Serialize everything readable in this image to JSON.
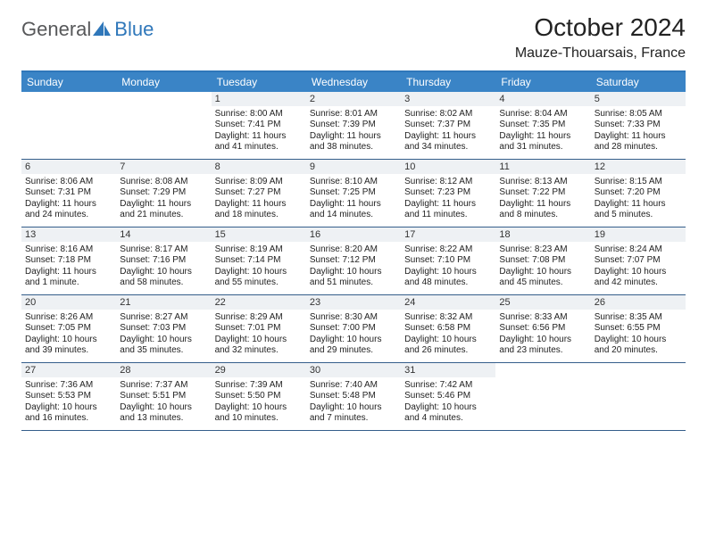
{
  "logo": {
    "general": "General",
    "blue": "Blue"
  },
  "header": {
    "title": "October 2024",
    "location": "Mauze-Thouarsais, France"
  },
  "colors": {
    "accent": "#3a84c6",
    "rule": "#355e8b",
    "daynum_bg": "#eef1f4"
  },
  "dow": [
    "Sunday",
    "Monday",
    "Tuesday",
    "Wednesday",
    "Thursday",
    "Friday",
    "Saturday"
  ],
  "layout": {
    "first_day_column": 2,
    "weeks": 5,
    "cols": 7
  },
  "days": [
    {
      "n": "1",
      "sr": "8:00 AM",
      "ss": "7:41 PM",
      "dl": "11 hours and 41 minutes."
    },
    {
      "n": "2",
      "sr": "8:01 AM",
      "ss": "7:39 PM",
      "dl": "11 hours and 38 minutes."
    },
    {
      "n": "3",
      "sr": "8:02 AM",
      "ss": "7:37 PM",
      "dl": "11 hours and 34 minutes."
    },
    {
      "n": "4",
      "sr": "8:04 AM",
      "ss": "7:35 PM",
      "dl": "11 hours and 31 minutes."
    },
    {
      "n": "5",
      "sr": "8:05 AM",
      "ss": "7:33 PM",
      "dl": "11 hours and 28 minutes."
    },
    {
      "n": "6",
      "sr": "8:06 AM",
      "ss": "7:31 PM",
      "dl": "11 hours and 24 minutes."
    },
    {
      "n": "7",
      "sr": "8:08 AM",
      "ss": "7:29 PM",
      "dl": "11 hours and 21 minutes."
    },
    {
      "n": "8",
      "sr": "8:09 AM",
      "ss": "7:27 PM",
      "dl": "11 hours and 18 minutes."
    },
    {
      "n": "9",
      "sr": "8:10 AM",
      "ss": "7:25 PM",
      "dl": "11 hours and 14 minutes."
    },
    {
      "n": "10",
      "sr": "8:12 AM",
      "ss": "7:23 PM",
      "dl": "11 hours and 11 minutes."
    },
    {
      "n": "11",
      "sr": "8:13 AM",
      "ss": "7:22 PM",
      "dl": "11 hours and 8 minutes."
    },
    {
      "n": "12",
      "sr": "8:15 AM",
      "ss": "7:20 PM",
      "dl": "11 hours and 5 minutes."
    },
    {
      "n": "13",
      "sr": "8:16 AM",
      "ss": "7:18 PM",
      "dl": "11 hours and 1 minute."
    },
    {
      "n": "14",
      "sr": "8:17 AM",
      "ss": "7:16 PM",
      "dl": "10 hours and 58 minutes."
    },
    {
      "n": "15",
      "sr": "8:19 AM",
      "ss": "7:14 PM",
      "dl": "10 hours and 55 minutes."
    },
    {
      "n": "16",
      "sr": "8:20 AM",
      "ss": "7:12 PM",
      "dl": "10 hours and 51 minutes."
    },
    {
      "n": "17",
      "sr": "8:22 AM",
      "ss": "7:10 PM",
      "dl": "10 hours and 48 minutes."
    },
    {
      "n": "18",
      "sr": "8:23 AM",
      "ss": "7:08 PM",
      "dl": "10 hours and 45 minutes."
    },
    {
      "n": "19",
      "sr": "8:24 AM",
      "ss": "7:07 PM",
      "dl": "10 hours and 42 minutes."
    },
    {
      "n": "20",
      "sr": "8:26 AM",
      "ss": "7:05 PM",
      "dl": "10 hours and 39 minutes."
    },
    {
      "n": "21",
      "sr": "8:27 AM",
      "ss": "7:03 PM",
      "dl": "10 hours and 35 minutes."
    },
    {
      "n": "22",
      "sr": "8:29 AM",
      "ss": "7:01 PM",
      "dl": "10 hours and 32 minutes."
    },
    {
      "n": "23",
      "sr": "8:30 AM",
      "ss": "7:00 PM",
      "dl": "10 hours and 29 minutes."
    },
    {
      "n": "24",
      "sr": "8:32 AM",
      "ss": "6:58 PM",
      "dl": "10 hours and 26 minutes."
    },
    {
      "n": "25",
      "sr": "8:33 AM",
      "ss": "6:56 PM",
      "dl": "10 hours and 23 minutes."
    },
    {
      "n": "26",
      "sr": "8:35 AM",
      "ss": "6:55 PM",
      "dl": "10 hours and 20 minutes."
    },
    {
      "n": "27",
      "sr": "7:36 AM",
      "ss": "5:53 PM",
      "dl": "10 hours and 16 minutes."
    },
    {
      "n": "28",
      "sr": "7:37 AM",
      "ss": "5:51 PM",
      "dl": "10 hours and 13 minutes."
    },
    {
      "n": "29",
      "sr": "7:39 AM",
      "ss": "5:50 PM",
      "dl": "10 hours and 10 minutes."
    },
    {
      "n": "30",
      "sr": "7:40 AM",
      "ss": "5:48 PM",
      "dl": "10 hours and 7 minutes."
    },
    {
      "n": "31",
      "sr": "7:42 AM",
      "ss": "5:46 PM",
      "dl": "10 hours and 4 minutes."
    }
  ],
  "labels": {
    "sunrise": "Sunrise:",
    "sunset": "Sunset:",
    "daylight": "Daylight:"
  }
}
